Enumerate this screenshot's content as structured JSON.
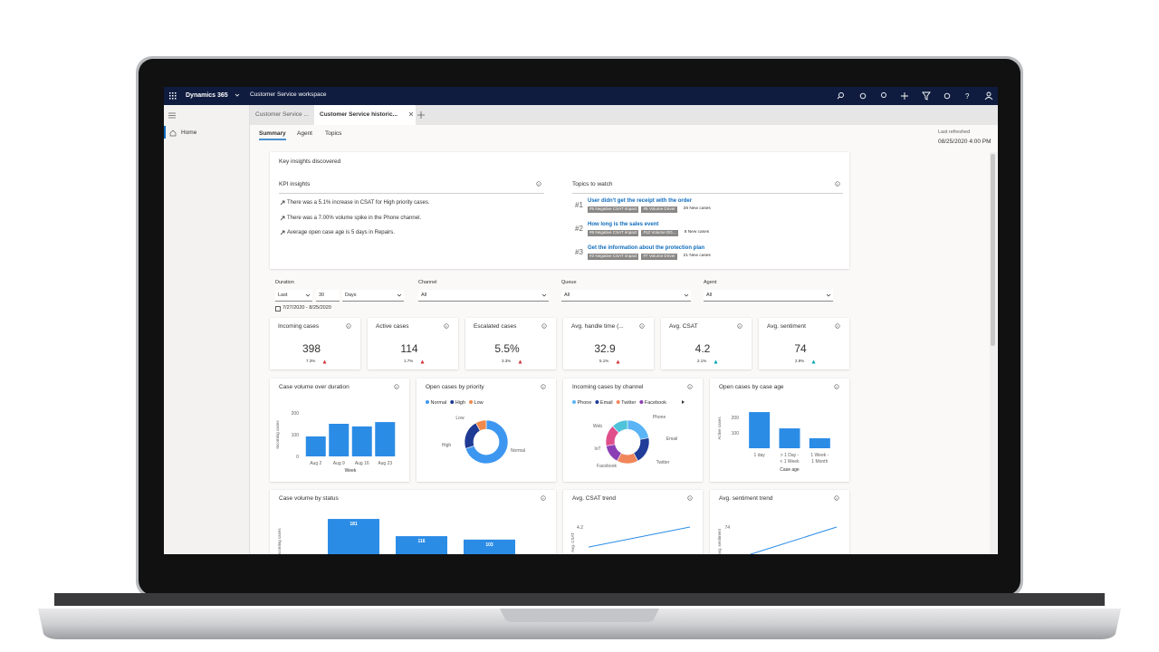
{
  "nav": {
    "app": "Dynamics 365",
    "workspace": "Customer Service workspace"
  },
  "session_tabs": [
    "Customer Service ...",
    "Customer Service historic..."
  ],
  "sidebar": {
    "home": "Home"
  },
  "page_tabs": [
    "Summary",
    "Agent",
    "Topics"
  ],
  "last_refreshed": {
    "label": "Last refreshed",
    "value": "08/25/2020 4:00 PM"
  },
  "insights": {
    "title": "Key insights discovered",
    "kpi_title": "KPI insights",
    "kpi_items": [
      "There was a 5.1% increase in CSAT for High priority cases.",
      "There was a 7.00% volume spike in the Phone channel.",
      "Average open case age is 5 days in Repairs."
    ],
    "topics_title": "Topics to watch",
    "topics": [
      {
        "rank": "#1",
        "title": "User didn't get the receipt with the order",
        "tags": [
          "#5 Negative CSAT impact",
          "#5 Volume Driver"
        ],
        "count": "28 New cases"
      },
      {
        "rank": "#2",
        "title": "How long is the sales event",
        "tags": [
          "#6 Negative CSAT impact",
          "#12 Volume DG..."
        ],
        "count": "8 New cases"
      },
      {
        "rank": "#3",
        "title": "Get the information about the protection plan",
        "tags": [
          "#2 Negative CSAT impact",
          "#7 Volume Driver"
        ],
        "count": "21 New cases"
      }
    ]
  },
  "filters": {
    "duration": {
      "label": "Duration",
      "period": "Last",
      "count": "30",
      "unit": "Days",
      "range": "7/27/2020 - 8/25/2020"
    },
    "channel": {
      "label": "Channel",
      "value": "All"
    },
    "queue": {
      "label": "Queue",
      "value": "All"
    },
    "agent": {
      "label": "Agent",
      "value": "All"
    }
  },
  "kpis": [
    {
      "title": "Incoming cases",
      "value": "398",
      "change": "7.3%",
      "trend_color": "#d13438"
    },
    {
      "title": "Active cases",
      "value": "114",
      "change": "1.7%",
      "trend_color": "#d13438"
    },
    {
      "title": "Escalated cases",
      "value": "5.5%",
      "change": "3.3%",
      "trend_color": "#d13438"
    },
    {
      "title": "Avg. handle time (...",
      "value": "32.9",
      "change": "5.1%",
      "trend_color": "#d13438"
    },
    {
      "title": "Avg. CSAT",
      "value": "4.2",
      "change": "2.1%",
      "trend_color": "#00a5b5"
    },
    {
      "title": "Avg. sentiment",
      "value": "74",
      "change": "2.9%",
      "trend_color": "#00a5b5"
    }
  ],
  "charts": [
    {
      "type": "bar",
      "title": "Case volume over duration",
      "y_label": "Incoming cases",
      "x_label": "Week",
      "categories": [
        "Aug 2",
        "Aug 9",
        "Aug 16",
        "Aug 23"
      ],
      "values": [
        92,
        150,
        138,
        158
      ],
      "color": "#2b8ce6",
      "ylim": [
        0,
        200
      ],
      "yticks": [
        0,
        100,
        200
      ]
    },
    {
      "type": "donut",
      "title": "Open cases by priority",
      "legend": [
        "Normal",
        "High",
        "Low"
      ],
      "categories": [
        "Normal",
        "High",
        "Low"
      ],
      "values": [
        70,
        22,
        8
      ],
      "colors": [
        "#3d97f0",
        "#1f3a93",
        "#f08a4b"
      ]
    },
    {
      "type": "donut",
      "title": "Incoming cases by channel",
      "legend": [
        "Phone",
        "Email",
        "Twitter",
        "Facebook"
      ],
      "categories": [
        "Phone",
        "Email",
        "Twitter",
        "Facebook",
        "IoT",
        "Web"
      ],
      "values": [
        22,
        20,
        16,
        14,
        16,
        12
      ],
      "colors": [
        "#5ab4f5",
        "#1f3d99",
        "#f0865a",
        "#8b3fb4",
        "#e04f8a",
        "#4fc3d9"
      ]
    },
    {
      "type": "bar",
      "title": "Open cases by case age",
      "y_label": "Active cases",
      "x_label": "Case age",
      "categories": [
        [
          "1 day"
        ],
        [
          "> 1 Day -",
          "< 1 Week"
        ],
        [
          "1 Week -",
          "1 Month"
        ]
      ],
      "values": [
        235,
        129,
        65
      ],
      "color": "#2b8ce6",
      "ylim": [
        0,
        250
      ],
      "yticks": [
        100,
        200
      ]
    },
    {
      "type": "bar",
      "title": "Case volume by status",
      "y_label": "Incoming cases",
      "values": [
        181,
        116,
        103
      ],
      "color": "#2b8ce6",
      "ylim": [
        0,
        200
      ],
      "data_labels": true
    },
    {
      "type": "line",
      "title": "Avg. CSAT trend",
      "y_label": "Avg. CSAT",
      "values": [
        3.9,
        4.0,
        4.1,
        4.2
      ],
      "color": "#2b8ce6",
      "ylim": [
        3.4,
        4.2
      ],
      "yticks": [
        4.2
      ]
    },
    {
      "type": "line",
      "title": "Avg. sentiment trend",
      "y_label": "Avg. sentiment",
      "values": [
        71,
        72,
        73,
        74
      ],
      "color": "#2b8ce6",
      "ylim": [
        69,
        74
      ],
      "yticks": [
        74
      ]
    }
  ]
}
